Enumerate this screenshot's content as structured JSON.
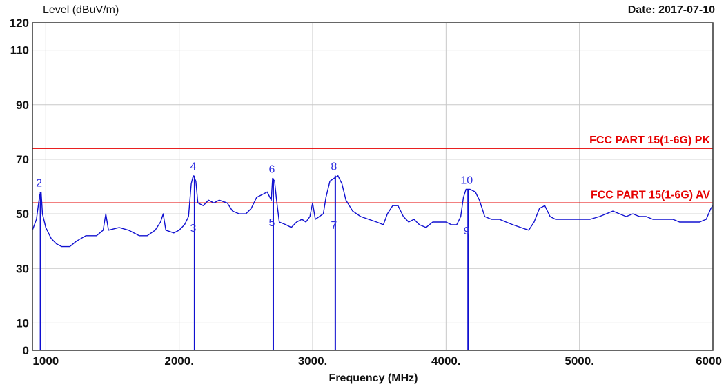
{
  "chart_data": {
    "type": "line",
    "title": "",
    "ylabel": "Level (dBuV/m)",
    "xlabel": "Frequency (MHz)",
    "date": "Date: 2017-07-10",
    "xlim": [
      900,
      6000
    ],
    "ylim": [
      0,
      120
    ],
    "x_ticks": [
      {
        "value": 1000,
        "label": "1000"
      },
      {
        "value": 2000,
        "label": "2000."
      },
      {
        "value": 3000,
        "label": "3000."
      },
      {
        "value": 4000,
        "label": "4000."
      },
      {
        "value": 5000,
        "label": "5000."
      },
      {
        "value": 6000,
        "label": "6000"
      }
    ],
    "y_ticks": [
      {
        "value": 0,
        "label": "0"
      },
      {
        "value": 10,
        "label": "10"
      },
      {
        "value": 30,
        "label": "30"
      },
      {
        "value": 50,
        "label": "50"
      },
      {
        "value": 70,
        "label": "70"
      },
      {
        "value": 90,
        "label": "90"
      },
      {
        "value": 110,
        "label": "110"
      },
      {
        "value": 120,
        "label": "120"
      }
    ],
    "grid": true,
    "limit_lines": [
      {
        "label": "FCC PART 15(1-6G) PK",
        "value": 74,
        "color": "#e60000"
      },
      {
        "label": "FCC PART 15(1-6G) AV",
        "value": 54,
        "color": "#e60000"
      }
    ],
    "markers": [
      {
        "label": "2",
        "x": 960,
        "y": 58
      },
      {
        "label": "3",
        "x": 2115,
        "y": 47
      },
      {
        "label": "4",
        "x": 2115,
        "y": 64
      },
      {
        "label": "5",
        "x": 2705,
        "y": 49
      },
      {
        "label": "6",
        "x": 2705,
        "y": 63
      },
      {
        "label": "7",
        "x": 3170,
        "y": 48
      },
      {
        "label": "8",
        "x": 3170,
        "y": 64
      },
      {
        "label": "9",
        "x": 4165,
        "y": 46
      },
      {
        "label": "10",
        "x": 4165,
        "y": 59
      }
    ],
    "series": [
      {
        "color": "#1010d0",
        "points": [
          [
            900,
            44
          ],
          [
            930,
            48
          ],
          [
            955,
            57
          ],
          [
            965,
            58
          ],
          [
            975,
            50
          ],
          [
            1000,
            45
          ],
          [
            1040,
            41
          ],
          [
            1080,
            39
          ],
          [
            1120,
            38
          ],
          [
            1180,
            38
          ],
          [
            1230,
            40
          ],
          [
            1300,
            42
          ],
          [
            1380,
            42
          ],
          [
            1430,
            44
          ],
          [
            1450,
            50
          ],
          [
            1470,
            44
          ],
          [
            1550,
            45
          ],
          [
            1620,
            44
          ],
          [
            1700,
            42
          ],
          [
            1760,
            42
          ],
          [
            1820,
            44
          ],
          [
            1860,
            47
          ],
          [
            1880,
            50
          ],
          [
            1900,
            44
          ],
          [
            1960,
            43
          ],
          [
            2000,
            44
          ],
          [
            2040,
            46
          ],
          [
            2070,
            49
          ],
          [
            2090,
            61
          ],
          [
            2105,
            64
          ],
          [
            2125,
            62
          ],
          [
            2140,
            54
          ],
          [
            2180,
            53
          ],
          [
            2220,
            55
          ],
          [
            2260,
            54
          ],
          [
            2300,
            55
          ],
          [
            2360,
            54
          ],
          [
            2400,
            51
          ],
          [
            2450,
            50
          ],
          [
            2500,
            50
          ],
          [
            2540,
            52
          ],
          [
            2580,
            56
          ],
          [
            2620,
            57
          ],
          [
            2660,
            58
          ],
          [
            2690,
            55
          ],
          [
            2700,
            63
          ],
          [
            2715,
            62
          ],
          [
            2730,
            55
          ],
          [
            2750,
            47
          ],
          [
            2800,
            46
          ],
          [
            2840,
            45
          ],
          [
            2880,
            47
          ],
          [
            2920,
            48
          ],
          [
            2950,
            47
          ],
          [
            2980,
            49
          ],
          [
            3000,
            54
          ],
          [
            3020,
            48
          ],
          [
            3050,
            49
          ],
          [
            3080,
            50
          ],
          [
            3100,
            56
          ],
          [
            3130,
            62
          ],
          [
            3160,
            63
          ],
          [
            3190,
            64
          ],
          [
            3220,
            61
          ],
          [
            3250,
            55
          ],
          [
            3300,
            51
          ],
          [
            3360,
            49
          ],
          [
            3420,
            48
          ],
          [
            3480,
            47
          ],
          [
            3530,
            46
          ],
          [
            3560,
            50
          ],
          [
            3600,
            53
          ],
          [
            3640,
            53
          ],
          [
            3680,
            49
          ],
          [
            3720,
            47
          ],
          [
            3760,
            48
          ],
          [
            3800,
            46
          ],
          [
            3850,
            45
          ],
          [
            3900,
            47
          ],
          [
            3950,
            47
          ],
          [
            4000,
            47
          ],
          [
            4040,
            46
          ],
          [
            4080,
            46
          ],
          [
            4110,
            49
          ],
          [
            4130,
            56
          ],
          [
            4150,
            59
          ],
          [
            4180,
            59
          ],
          [
            4220,
            58
          ],
          [
            4250,
            55
          ],
          [
            4290,
            49
          ],
          [
            4340,
            48
          ],
          [
            4400,
            48
          ],
          [
            4450,
            47
          ],
          [
            4500,
            46
          ],
          [
            4560,
            45
          ],
          [
            4620,
            44
          ],
          [
            4660,
            47
          ],
          [
            4700,
            52
          ],
          [
            4740,
            53
          ],
          [
            4780,
            49
          ],
          [
            4820,
            48
          ],
          [
            4880,
            48
          ],
          [
            4950,
            48
          ],
          [
            5000,
            48
          ],
          [
            5080,
            48
          ],
          [
            5150,
            49
          ],
          [
            5200,
            50
          ],
          [
            5250,
            51
          ],
          [
            5300,
            50
          ],
          [
            5350,
            49
          ],
          [
            5400,
            50
          ],
          [
            5450,
            49
          ],
          [
            5500,
            49
          ],
          [
            5550,
            48
          ],
          [
            5600,
            48
          ],
          [
            5650,
            48
          ],
          [
            5700,
            48
          ],
          [
            5750,
            47
          ],
          [
            5800,
            47
          ],
          [
            5850,
            47
          ],
          [
            5900,
            47
          ],
          [
            5950,
            48
          ],
          [
            5985,
            52
          ],
          [
            6000,
            53
          ]
        ]
      }
    ]
  }
}
